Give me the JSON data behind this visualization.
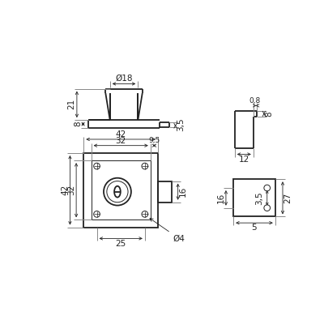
{
  "bg_color": "#ffffff",
  "line_color": "#222222",
  "lw": 1.3,
  "tlw": 0.7,
  "dlw": 0.6,
  "fs": 7.5,
  "fs_small": 6.5
}
